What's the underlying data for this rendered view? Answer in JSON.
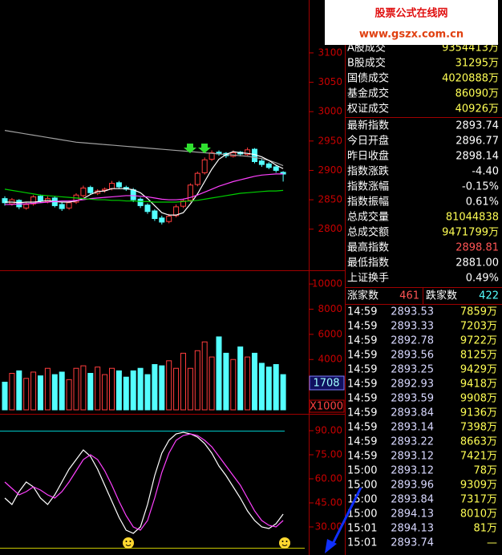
{
  "watermark": {
    "title": "股票公式在线网",
    "url": "www.gszx.com.cn"
  },
  "chart_data": [
    {
      "type": "candlestick",
      "up_color": "#ff3c3c",
      "down_color": "#54ffff",
      "open": [
        2852,
        2843,
        2849,
        2836,
        2843,
        2856,
        2847,
        2853,
        2842,
        2836,
        2846,
        2857,
        2871,
        2861,
        2866,
        2869,
        2879,
        2871,
        2867,
        2851,
        2841,
        2831,
        2819,
        2813,
        2823,
        2839,
        2849,
        2876,
        2896,
        2919,
        2931,
        2929,
        2924,
        2931,
        2927,
        2936,
        2916,
        2911,
        2906,
        2896.77
      ],
      "high": [
        2856,
        2853,
        2851,
        2846,
        2858,
        2859,
        2856,
        2856,
        2846,
        2849,
        2861,
        2874,
        2874,
        2868,
        2871,
        2882,
        2882,
        2874,
        2870,
        2854,
        2844,
        2834,
        2823,
        2826,
        2842,
        2852,
        2878,
        2898,
        2922,
        2934,
        2934,
        2931,
        2934,
        2933,
        2939,
        2938,
        2919,
        2914,
        2909,
        2898.81
      ],
      "low": [
        2840,
        2840,
        2834,
        2833,
        2840,
        2845,
        2844,
        2837,
        2831,
        2833,
        2843,
        2854,
        2859,
        2858,
        2862,
        2866,
        2869,
        2865,
        2846,
        2836,
        2826,
        2814,
        2808,
        2810,
        2820,
        2836,
        2846,
        2873,
        2893,
        2916,
        2925,
        2921,
        2922,
        2924,
        2925,
        2912,
        2906,
        2902,
        2896,
        2881
      ],
      "close": [
        2845,
        2850,
        2838,
        2842,
        2855,
        2848,
        2852,
        2840,
        2835,
        2845,
        2858,
        2870,
        2862,
        2865,
        2868,
        2878,
        2872,
        2868,
        2850,
        2840,
        2830,
        2818,
        2812,
        2822,
        2838,
        2848,
        2875,
        2895,
        2918,
        2930,
        2928,
        2925,
        2930,
        2928,
        2935,
        2915,
        2910,
        2905,
        2900,
        2893.74
      ],
      "series": [
        {
          "color": "#a0a0a0",
          "values": [
            2968,
            2966,
            2964,
            2962,
            2960,
            2958,
            2956,
            2954,
            2952,
            2950,
            2948,
            2947,
            2946,
            2945,
            2944,
            2943,
            2942,
            2941,
            2940,
            2939,
            2938,
            2937,
            2936,
            2935,
            2934,
            2933,
            2932,
            2931,
            2930,
            2929,
            2928,
            2927,
            2926,
            2925,
            2924,
            2922,
            2920,
            2917,
            2913,
            2908
          ]
        },
        {
          "color": "#ffffff",
          "values": [
            2846,
            2846,
            2845,
            2846,
            2846,
            2847,
            2849,
            2847,
            2846,
            2846,
            2848,
            2852,
            2859,
            2864,
            2865,
            2869,
            2869,
            2869,
            2867,
            2862,
            2852,
            2840,
            2828,
            2824,
            2824,
            2828,
            2843,
            2860,
            2881,
            2902,
            2919,
            2927,
            2932,
            2930,
            2929,
            2927,
            2923,
            2917,
            2909,
            2903
          ]
        },
        {
          "color": "#ff40ff",
          "values": [
            2842,
            2842,
            2843,
            2843,
            2844,
            2845,
            2846,
            2847,
            2848,
            2848,
            2849,
            2850,
            2852,
            2853,
            2854,
            2855,
            2856,
            2857,
            2857,
            2856,
            2855,
            2853,
            2851,
            2850,
            2850,
            2851,
            2854,
            2858,
            2863,
            2868,
            2873,
            2877,
            2881,
            2884,
            2887,
            2890,
            2892,
            2893,
            2894,
            2894
          ]
        },
        {
          "color": "#00d000",
          "values": [
            2868,
            2866,
            2864,
            2862,
            2860,
            2858,
            2857,
            2856,
            2855,
            2854,
            2853,
            2852,
            2851,
            2850,
            2850,
            2849,
            2849,
            2848,
            2848,
            2847,
            2847,
            2846,
            2846,
            2846,
            2846,
            2847,
            2848,
            2849,
            2851,
            2853,
            2855,
            2857,
            2859,
            2861,
            2862,
            2863,
            2864,
            2865,
            2865,
            2866
          ]
        }
      ],
      "ylim": [
        2730,
        3190
      ],
      "yticks": [
        2800,
        2850,
        2900,
        2950,
        3000,
        3050,
        3100
      ]
    },
    {
      "type": "bar",
      "values": [
        2200,
        2900,
        3100,
        2500,
        3000,
        2700,
        3300,
        2800,
        3000,
        2400,
        3300,
        3500,
        2900,
        3400,
        2800,
        3300,
        3100,
        2600,
        3100,
        3300,
        2800,
        3600,
        3500,
        3900,
        3300,
        4500,
        3300,
        4700,
        5400,
        4200,
        5800,
        4500,
        4000,
        5000,
        4200,
        4500,
        3700,
        3400,
        3600,
        2800
      ],
      "ylim": [
        0,
        10900
      ],
      "yticks": [
        2000,
        4000,
        6000,
        8000,
        10000
      ],
      "annotations": [
        "1708",
        "X1000"
      ]
    },
    {
      "type": "line",
      "series": [
        {
          "color": "#ffffff",
          "values": [
            48,
            44,
            52,
            58,
            55,
            48,
            44,
            50,
            58,
            66,
            72,
            78,
            74,
            66,
            56,
            46,
            36,
            28,
            26,
            30,
            44,
            62,
            76,
            84,
            88,
            89,
            88,
            86,
            82,
            76,
            68,
            62,
            55,
            48,
            40,
            34,
            30,
            29,
            32,
            38
          ]
        },
        {
          "color": "#ff40ff",
          "values": [
            58,
            54,
            50,
            52,
            55,
            53,
            50,
            48,
            52,
            58,
            65,
            72,
            75,
            72,
            65,
            56,
            46,
            37,
            30,
            28,
            34,
            48,
            64,
            76,
            84,
            87,
            88,
            87,
            84,
            80,
            74,
            68,
            62,
            56,
            48,
            40,
            34,
            31,
            30,
            34
          ]
        }
      ],
      "ylim": [
        16,
        98.5
      ],
      "yticks": [
        {
          "value": 30,
          "label": "30.00"
        },
        {
          "value": 45,
          "label": "45.00"
        },
        {
          "value": 60,
          "label": "60.00"
        },
        {
          "value": 75,
          "label": "75.00"
        },
        {
          "value": 90,
          "label": "90.00"
        }
      ]
    }
  ],
  "market_stats": [
    {
      "label": "A股成交",
      "value": "9354413万",
      "color": "#ffff54"
    },
    {
      "label": "B股成交",
      "value": "31295万",
      "color": "#ffff54"
    },
    {
      "label": "国债成交",
      "value": "4020888万",
      "color": "#ffff54"
    },
    {
      "label": "基金成交",
      "value": "86090万",
      "color": "#ffff54"
    },
    {
      "label": "权证成交",
      "value": "40926万",
      "color": "#ffff54"
    }
  ],
  "index_stats": [
    {
      "label": "最新指数",
      "value": "2893.74",
      "color": "#ffffff"
    },
    {
      "label": "今日开盘",
      "value": "2896.77",
      "color": "#ffffff"
    },
    {
      "label": "昨日收盘",
      "value": "2898.14",
      "color": "#ffffff"
    },
    {
      "label": "指数涨跌",
      "value": "-4.40",
      "color": "#ffffff"
    },
    {
      "label": "指数涨幅",
      "value": "-0.15%",
      "color": "#ffffff"
    },
    {
      "label": "指数振幅",
      "value": "0.61%",
      "color": "#ffffff"
    },
    {
      "label": "总成交量",
      "value": "81044838",
      "color": "#ffff54"
    },
    {
      "label": "总成交额",
      "value": "9471799万",
      "color": "#ffff54"
    },
    {
      "label": "最高指数",
      "value": "2898.81",
      "color": "#ff5454"
    },
    {
      "label": "最低指数",
      "value": "2881.00",
      "color": "#ffffff"
    },
    {
      "label": "上证换手",
      "value": "0.49%",
      "color": "#ffffff"
    }
  ],
  "breadth": {
    "up_label": "涨家数",
    "up_count": "461",
    "down_label": "跌家数",
    "down_count": "422"
  },
  "trades": [
    [
      "14:59",
      "2893.53",
      "7859万"
    ],
    [
      "14:59",
      "2893.33",
      "7203万"
    ],
    [
      "14:59",
      "2892.78",
      "9722万"
    ],
    [
      "14:59",
      "2893.56",
      "8125万"
    ],
    [
      "14:59",
      "2893.25",
      "9429万"
    ],
    [
      "14:59",
      "2892.93",
      "9418万"
    ],
    [
      "14:59",
      "2893.59",
      "9908万"
    ],
    [
      "14:59",
      "2893.84",
      "9136万"
    ],
    [
      "14:59",
      "2893.14",
      "7398万"
    ],
    [
      "14:59",
      "2893.22",
      "8663万"
    ],
    [
      "14:59",
      "2893.12",
      "7421万"
    ],
    [
      "15:00",
      "2893.12",
      "78万"
    ],
    [
      "15:00",
      "2893.96",
      "9309万"
    ],
    [
      "15:00",
      "2893.84",
      "7317万"
    ],
    [
      "15:00",
      "2894.13",
      "8010万"
    ],
    [
      "15:01",
      "2894.13",
      "81万"
    ],
    [
      "15:01",
      "2893.74",
      "—"
    ]
  ]
}
